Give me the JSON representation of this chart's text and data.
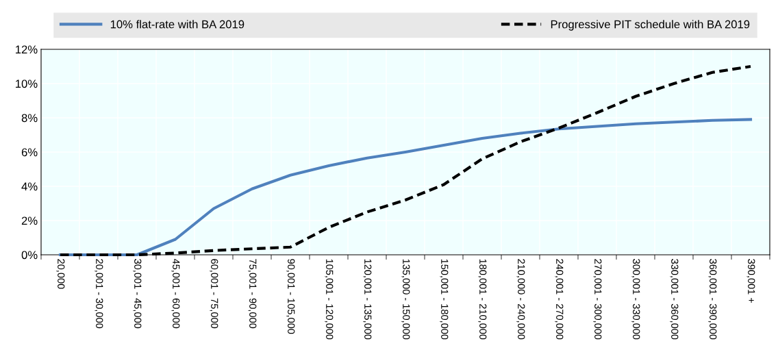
{
  "chart_data": {
    "type": "line",
    "categories": [
      "20,000",
      "20,001 - 30,000",
      "30,001 - 45,000",
      "45,001 - 60,000",
      "60,001 - 75,000",
      "75,001 - 90,000",
      "90,001 - 105,000",
      "105,001 - 120,000",
      "120,001 - 135,000",
      "135,000 - 150,000",
      "150,001 - 180,000",
      "180,001 - 210,000",
      "210,000 - 240,000",
      "240,001 - 270,000",
      "270,001 - 300,000",
      "300,001 - 330,000",
      "330,001 - 360,000",
      "360,001 - 390,000",
      "390,001 +"
    ],
    "series": [
      {
        "name": "10% flat-rate with BA 2019",
        "color": "#4f81bd",
        "line_style": "solid",
        "values": [
          0,
          0,
          0,
          0.9,
          2.7,
          3.85,
          4.65,
          5.2,
          5.65,
          6.0,
          6.4,
          6.8,
          7.1,
          7.35,
          7.5,
          7.65,
          7.75,
          7.85,
          7.9
        ]
      },
      {
        "name": "Progressive PIT schedule with BA 2019",
        "color": "#000000",
        "line_style": "dashed",
        "values": [
          0,
          0,
          0,
          0.1,
          0.25,
          0.35,
          0.45,
          1.6,
          2.5,
          3.2,
          4.1,
          5.6,
          6.6,
          7.4,
          8.3,
          9.25,
          10.0,
          10.65,
          11.0
        ]
      }
    ],
    "ylim": [
      0,
      12
    ],
    "yticks": [
      {
        "value": 0,
        "label": "0%"
      },
      {
        "value": 2,
        "label": "2%"
      },
      {
        "value": 4,
        "label": "4%"
      },
      {
        "value": 6,
        "label": "6%"
      },
      {
        "value": 8,
        "label": "8%"
      },
      {
        "value": 10,
        "label": "10%"
      },
      {
        "value": 12,
        "label": "12%"
      }
    ],
    "grid": true,
    "legend": "top",
    "marker": "none"
  }
}
